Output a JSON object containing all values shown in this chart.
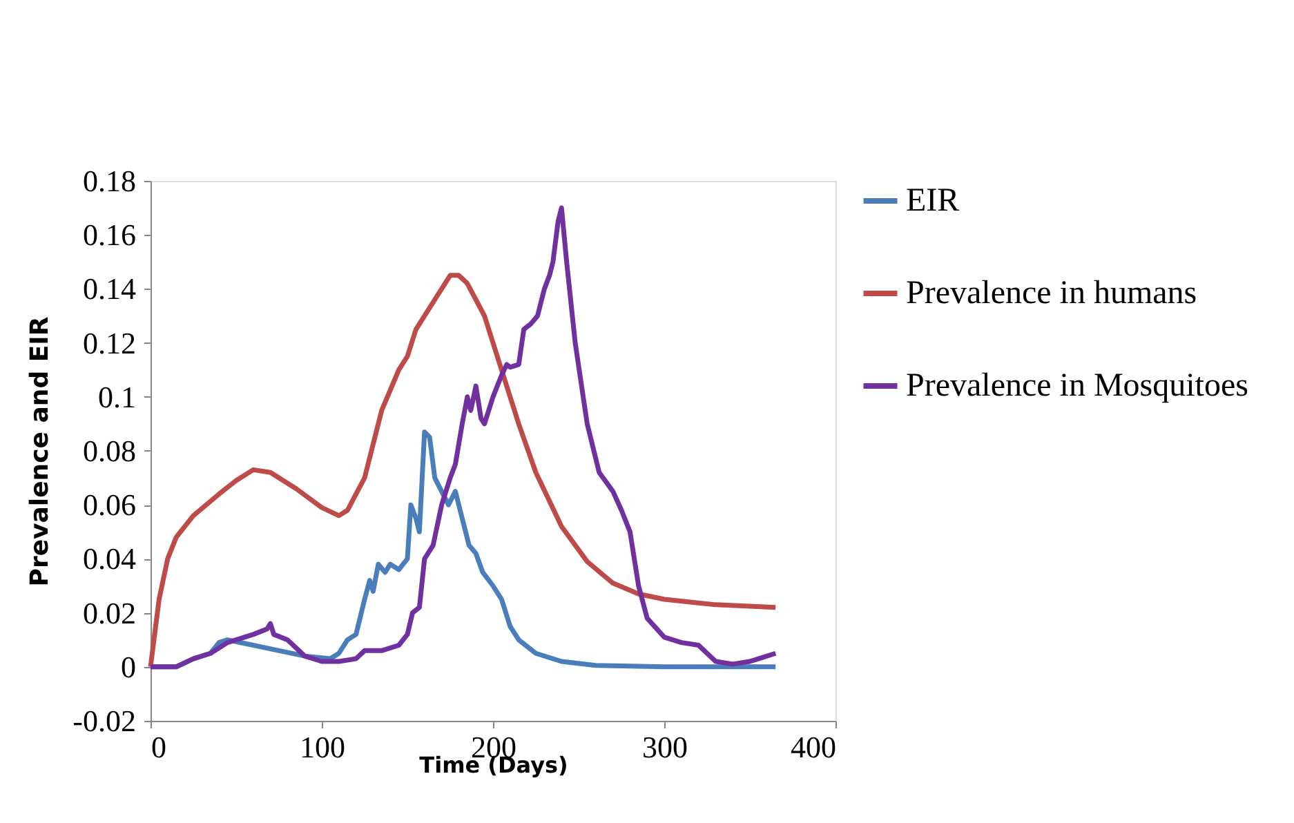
{
  "chart_data": {
    "type": "line",
    "xlabel": "Time (Days)",
    "ylabel": "Prevalence and EIR",
    "xlim": [
      0,
      400
    ],
    "xticks": [
      0,
      100,
      200,
      300,
      400
    ],
    "ylim": [
      -0.02,
      0.18
    ],
    "yticks": [
      -0.02,
      0,
      0.02,
      0.04,
      0.06,
      0.08,
      0.1,
      0.12,
      0.14,
      0.16,
      0.18
    ],
    "grid": false,
    "legend": "right",
    "marker": "none",
    "line_style": "solid",
    "series": [
      {
        "name": "EIR",
        "color": "#4a7ebb",
        "x": [
          0,
          15,
          25,
          35,
          40,
          45,
          60,
          75,
          90,
          105,
          110,
          115,
          120,
          125,
          128,
          130,
          133,
          137,
          140,
          145,
          150,
          152,
          155,
          157,
          160,
          163,
          166,
          170,
          174,
          178,
          182,
          186,
          190,
          194,
          200,
          205,
          210,
          215,
          225,
          240,
          260,
          300,
          365
        ],
        "values": [
          0,
          0,
          0.003,
          0.005,
          0.009,
          0.01,
          0.008,
          0.006,
          0.004,
          0.003,
          0.005,
          0.01,
          0.012,
          0.025,
          0.032,
          0.028,
          0.038,
          0.035,
          0.038,
          0.036,
          0.04,
          0.06,
          0.055,
          0.05,
          0.087,
          0.085,
          0.07,
          0.065,
          0.06,
          0.065,
          0.055,
          0.045,
          0.042,
          0.035,
          0.03,
          0.025,
          0.015,
          0.01,
          0.005,
          0.002,
          0.0005,
          0,
          0
        ]
      },
      {
        "name": "Prevalence in humans",
        "color": "#be4b48",
        "x": [
          0,
          5,
          10,
          15,
          25,
          40,
          50,
          60,
          70,
          85,
          100,
          110,
          115,
          125,
          135,
          145,
          150,
          155,
          165,
          175,
          180,
          185,
          195,
          205,
          215,
          225,
          240,
          255,
          270,
          285,
          300,
          330,
          365
        ],
        "values": [
          0,
          0.025,
          0.04,
          0.048,
          0.056,
          0.064,
          0.069,
          0.073,
          0.072,
          0.066,
          0.059,
          0.056,
          0.058,
          0.07,
          0.095,
          0.11,
          0.115,
          0.125,
          0.135,
          0.145,
          0.145,
          0.142,
          0.13,
          0.11,
          0.09,
          0.072,
          0.052,
          0.039,
          0.031,
          0.027,
          0.025,
          0.023,
          0.022
        ]
      },
      {
        "name": "Prevalence in Mosquitoes",
        "color": "#7030a0",
        "x": [
          0,
          15,
          25,
          35,
          45,
          60,
          68,
          70,
          72,
          80,
          90,
          100,
          110,
          120,
          125,
          135,
          145,
          150,
          153,
          157,
          160,
          165,
          170,
          175,
          178,
          182,
          185,
          187,
          190,
          193,
          195,
          200,
          205,
          208,
          210,
          215,
          218,
          222,
          226,
          230,
          233,
          235,
          238,
          240,
          243,
          248,
          255,
          262,
          270,
          275,
          280,
          285,
          290,
          300,
          310,
          320,
          330,
          340,
          350,
          355,
          365
        ],
        "values": [
          0,
          0,
          0.003,
          0.005,
          0.009,
          0.012,
          0.014,
          0.016,
          0.012,
          0.01,
          0.004,
          0.002,
          0.002,
          0.003,
          0.006,
          0.006,
          0.008,
          0.012,
          0.02,
          0.022,
          0.04,
          0.045,
          0.06,
          0.07,
          0.075,
          0.09,
          0.1,
          0.095,
          0.104,
          0.092,
          0.09,
          0.1,
          0.108,
          0.112,
          0.111,
          0.112,
          0.125,
          0.127,
          0.13,
          0.14,
          0.145,
          0.15,
          0.165,
          0.17,
          0.15,
          0.12,
          0.09,
          0.072,
          0.065,
          0.058,
          0.05,
          0.03,
          0.018,
          0.011,
          0.009,
          0.008,
          0.002,
          0.001,
          0.002,
          0.003,
          0.005
        ]
      }
    ]
  }
}
